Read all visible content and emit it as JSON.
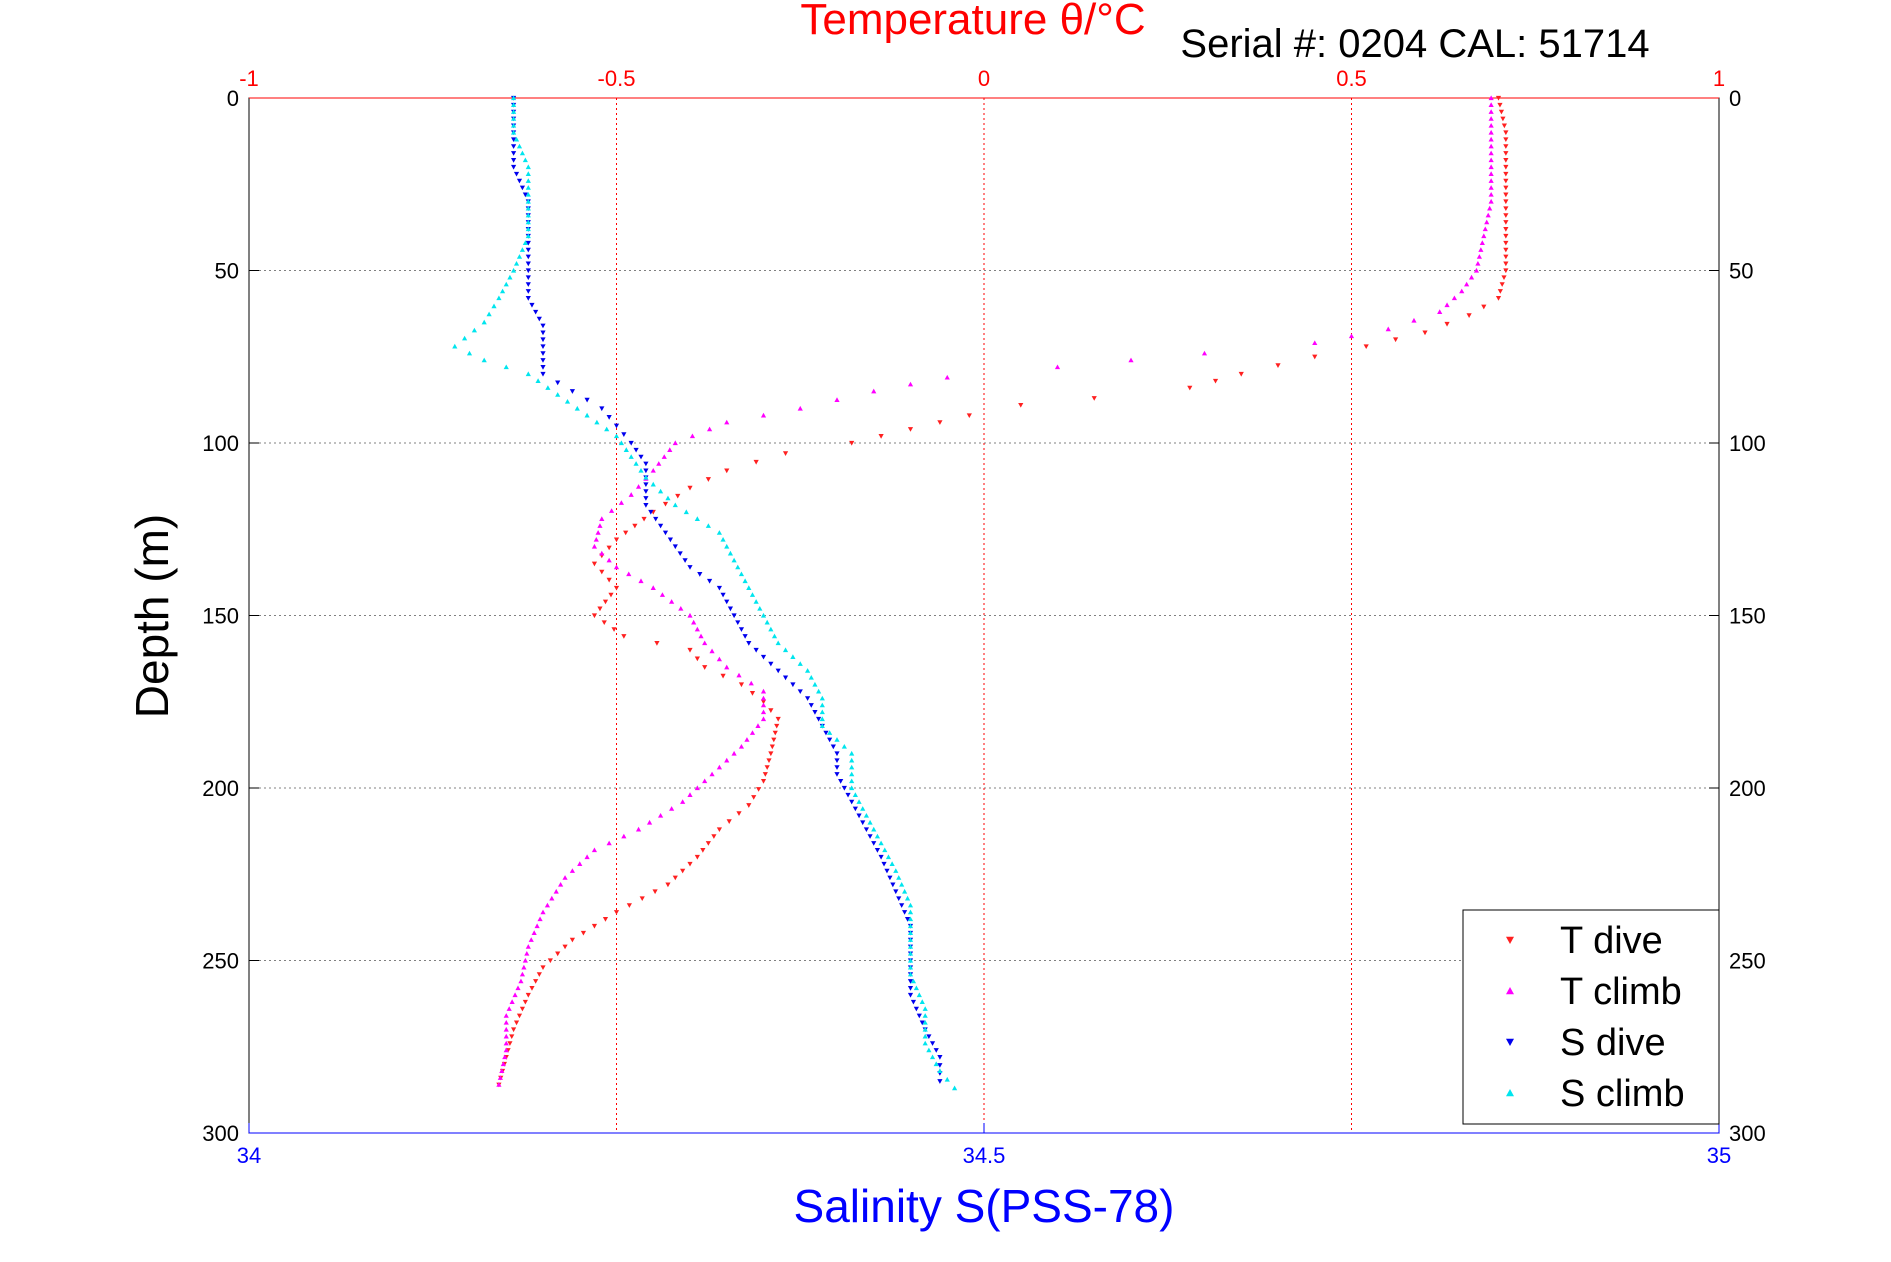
{
  "chart_data": {
    "type": "scatter",
    "title": "Temperature θ/°C",
    "subtitle": "Serial #: 0204  CAL: 51714",
    "ylabel": "Depth (m)",
    "xlabel": "Salinity S(PSS-78)",
    "x_top_label": "Temperature θ/°C",
    "y_range": [
      0,
      300
    ],
    "y_reversed": true,
    "y_ticks": [
      "0",
      "50",
      "100",
      "150",
      "200",
      "250",
      "300"
    ],
    "x_top_range": [
      -1,
      1
    ],
    "x_top_ticks": [
      "-1",
      "-0.5",
      "0",
      "0.5",
      "1"
    ],
    "x_bottom_range": [
      34,
      35
    ],
    "x_bottom_ticks": [
      "34",
      "34.5",
      "35"
    ],
    "grid": true,
    "legend_position": "bottom-right",
    "colors": {
      "t_axis": "#ff0000",
      "s_axis": "#0000ff",
      "grid": "#808080"
    },
    "series": [
      {
        "name": "T dive",
        "axis": "temperature",
        "color": "#ff2020",
        "marker": "triangle-down",
        "points": [
          [
            0.7,
            0
          ],
          [
            0.71,
            10
          ],
          [
            0.71,
            20
          ],
          [
            0.71,
            30
          ],
          [
            0.71,
            40
          ],
          [
            0.71,
            50
          ],
          [
            0.7,
            58
          ],
          [
            0.66,
            63
          ],
          [
            0.6,
            68
          ],
          [
            0.52,
            72
          ],
          [
            0.45,
            75
          ],
          [
            0.35,
            80
          ],
          [
            0.28,
            84
          ],
          [
            0.15,
            87
          ],
          [
            0.05,
            89
          ],
          [
            -0.02,
            92
          ],
          [
            -0.1,
            96
          ],
          [
            -0.18,
            100
          ],
          [
            -0.27,
            103
          ],
          [
            -0.35,
            108
          ],
          [
            -0.4,
            113
          ],
          [
            -0.45,
            120
          ],
          [
            -0.5,
            128
          ],
          [
            -0.53,
            135
          ],
          [
            -0.5,
            142
          ],
          [
            -0.53,
            150
          ],
          [
            -0.49,
            156
          ],
          [
            -0.4,
            160
          ],
          [
            -0.38,
            165
          ],
          [
            -0.33,
            170
          ],
          [
            -0.3,
            175
          ],
          [
            -0.28,
            180
          ],
          [
            -0.29,
            190
          ],
          [
            -0.3,
            198
          ],
          [
            -0.32,
            205
          ],
          [
            -0.36,
            212
          ],
          [
            -0.39,
            220
          ],
          [
            -0.43,
            228
          ],
          [
            -0.5,
            236
          ],
          [
            -0.56,
            244
          ],
          [
            -0.6,
            252
          ],
          [
            -0.62,
            260
          ],
          [
            -0.64,
            270
          ],
          [
            -0.65,
            278
          ],
          [
            -0.66,
            286
          ]
        ]
      },
      {
        "name": "T climb",
        "axis": "temperature",
        "color": "#ff00ff",
        "marker": "triangle-up",
        "points": [
          [
            0.69,
            0
          ],
          [
            0.69,
            10
          ],
          [
            0.69,
            20
          ],
          [
            0.69,
            30
          ],
          [
            0.68,
            40
          ],
          [
            0.67,
            50
          ],
          [
            0.65,
            56
          ],
          [
            0.62,
            62
          ],
          [
            0.55,
            67
          ],
          [
            0.45,
            71
          ],
          [
            0.3,
            74
          ],
          [
            0.1,
            78
          ],
          [
            -0.05,
            81
          ],
          [
            -0.15,
            85
          ],
          [
            -0.25,
            90
          ],
          [
            -0.35,
            94
          ],
          [
            -0.42,
            100
          ],
          [
            -0.45,
            108
          ],
          [
            -0.48,
            115
          ],
          [
            -0.52,
            122
          ],
          [
            -0.53,
            130
          ],
          [
            -0.5,
            136
          ],
          [
            -0.45,
            142
          ],
          [
            -0.4,
            150
          ],
          [
            -0.38,
            158
          ],
          [
            -0.35,
            165
          ],
          [
            -0.3,
            172
          ],
          [
            -0.3,
            180
          ],
          [
            -0.33,
            188
          ],
          [
            -0.37,
            196
          ],
          [
            -0.41,
            204
          ],
          [
            -0.47,
            212
          ],
          [
            -0.53,
            218
          ],
          [
            -0.57,
            226
          ],
          [
            -0.6,
            236
          ],
          [
            -0.62,
            246
          ],
          [
            -0.63,
            256
          ],
          [
            -0.65,
            266
          ],
          [
            -0.65,
            276
          ],
          [
            -0.66,
            286
          ]
        ]
      },
      {
        "name": "S dive",
        "axis": "salinity",
        "color": "#0000ee",
        "marker": "triangle-down",
        "points": [
          [
            34.18,
            0
          ],
          [
            34.18,
            10
          ],
          [
            34.18,
            20
          ],
          [
            34.19,
            30
          ],
          [
            34.19,
            40
          ],
          [
            34.19,
            50
          ],
          [
            34.19,
            58
          ],
          [
            34.2,
            66
          ],
          [
            34.2,
            74
          ],
          [
            34.2,
            80
          ],
          [
            34.22,
            85
          ],
          [
            34.24,
            90
          ],
          [
            34.25,
            95
          ],
          [
            34.26,
            100
          ],
          [
            34.27,
            106
          ],
          [
            34.27,
            112
          ],
          [
            34.27,
            118
          ],
          [
            34.28,
            124
          ],
          [
            34.29,
            130
          ],
          [
            34.3,
            136
          ],
          [
            34.32,
            142
          ],
          [
            34.33,
            150
          ],
          [
            34.34,
            158
          ],
          [
            34.36,
            166
          ],
          [
            34.38,
            174
          ],
          [
            34.39,
            182
          ],
          [
            34.4,
            190
          ],
          [
            34.4,
            196
          ],
          [
            34.41,
            204
          ],
          [
            34.42,
            212
          ],
          [
            34.43,
            220
          ],
          [
            34.44,
            230
          ],
          [
            34.45,
            240
          ],
          [
            34.45,
            250
          ],
          [
            34.45,
            260
          ],
          [
            34.46,
            270
          ],
          [
            34.47,
            278
          ],
          [
            34.47,
            285
          ]
        ]
      },
      {
        "name": "S climb",
        "axis": "salinity",
        "color": "#00e5ee",
        "marker": "triangle-up",
        "points": [
          [
            34.18,
            0
          ],
          [
            34.18,
            10
          ],
          [
            34.19,
            20
          ],
          [
            34.19,
            30
          ],
          [
            34.19,
            40
          ],
          [
            34.18,
            50
          ],
          [
            34.17,
            58
          ],
          [
            34.16,
            65
          ],
          [
            34.14,
            72
          ],
          [
            34.16,
            76
          ],
          [
            34.19,
            80
          ],
          [
            34.21,
            86
          ],
          [
            34.23,
            92
          ],
          [
            34.25,
            98
          ],
          [
            34.26,
            104
          ],
          [
            34.27,
            110
          ],
          [
            34.29,
            118
          ],
          [
            34.32,
            126
          ],
          [
            34.33,
            134
          ],
          [
            34.34,
            142
          ],
          [
            34.35,
            150
          ],
          [
            34.36,
            158
          ],
          [
            34.38,
            166
          ],
          [
            34.39,
            174
          ],
          [
            34.39,
            182
          ],
          [
            34.41,
            190
          ],
          [
            34.41,
            200
          ],
          [
            34.42,
            208
          ],
          [
            34.43,
            216
          ],
          [
            34.44,
            224
          ],
          [
            34.45,
            234
          ],
          [
            34.45,
            244
          ],
          [
            34.45,
            254
          ],
          [
            34.46,
            264
          ],
          [
            34.46,
            274
          ],
          [
            34.47,
            282
          ],
          [
            34.48,
            287
          ]
        ]
      }
    ]
  }
}
